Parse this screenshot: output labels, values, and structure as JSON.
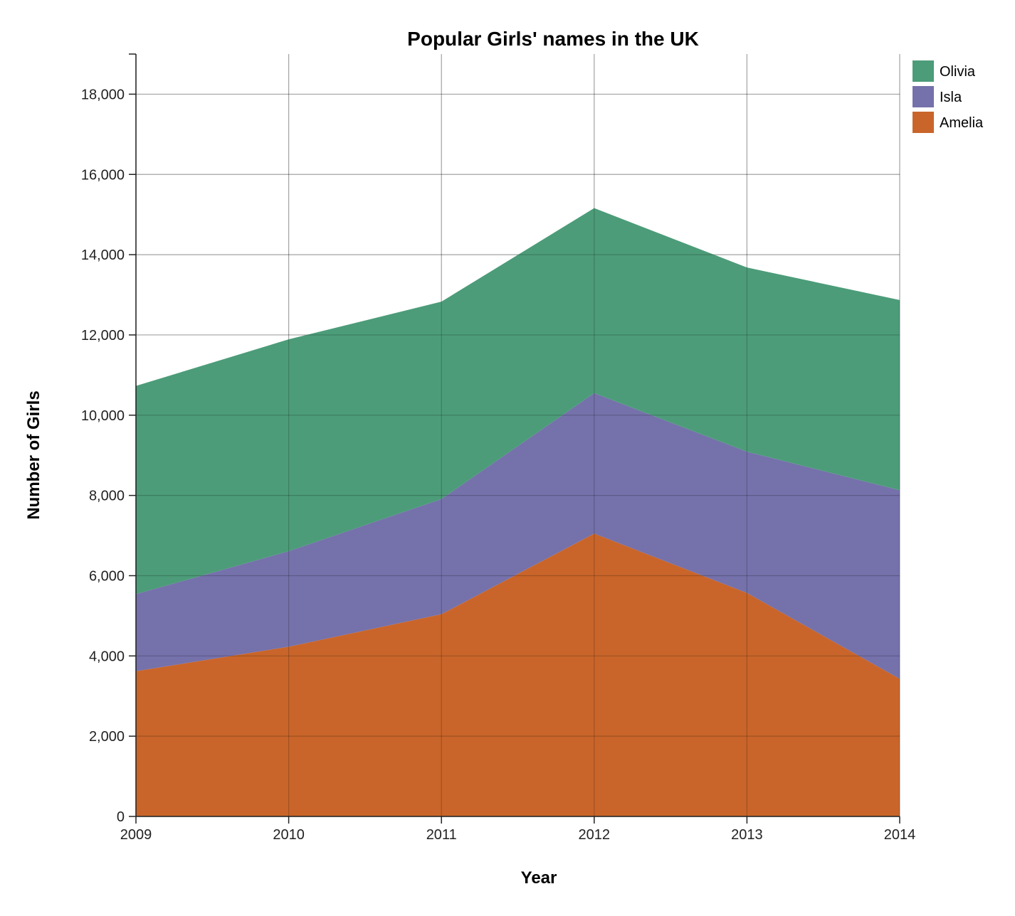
{
  "chart_data": {
    "type": "area",
    "stacked": true,
    "title": "Popular Girls' names in the UK",
    "xlabel": "Year",
    "ylabel": "Number of Girls",
    "x": [
      "2009",
      "2010",
      "2011",
      "2012",
      "2013",
      "2014"
    ],
    "ylim": [
      0,
      19000
    ],
    "yticks": [
      0,
      2000,
      4000,
      6000,
      8000,
      10000,
      12000,
      14000,
      16000,
      18000
    ],
    "ytick_labels": [
      "0",
      "2,000",
      "4,000",
      "6,000",
      "8,000",
      "10,000",
      "12,000",
      "14,000",
      "16,000",
      "18,000"
    ],
    "grid": true,
    "legend_position": "top-right",
    "series": [
      {
        "name": "Amelia",
        "color": "#c9652a",
        "values": [
          3620,
          4230,
          5040,
          7050,
          5570,
          3430
        ]
      },
      {
        "name": "Isla",
        "color": "#7571ab",
        "values": [
          1920,
          2380,
          2870,
          3500,
          3520,
          4700
        ]
      },
      {
        "name": "Olivia",
        "color": "#4c9c79",
        "values": [
          5190,
          5280,
          4920,
          4610,
          4590,
          4740
        ]
      }
    ],
    "legend_order": [
      "Olivia",
      "Isla",
      "Amelia"
    ]
  }
}
